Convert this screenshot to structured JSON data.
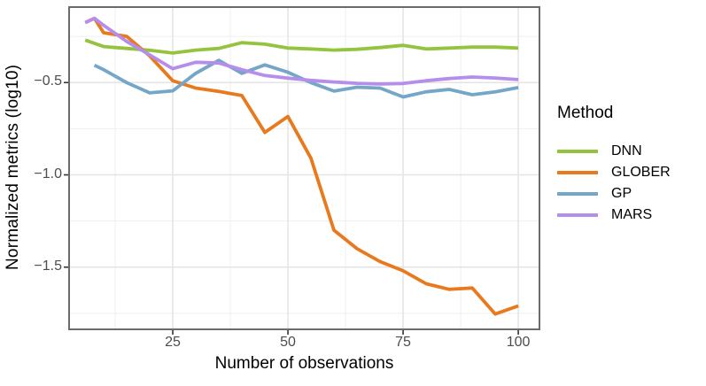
{
  "chart_data": {
    "type": "line",
    "title": "",
    "xlabel": "Number of observations",
    "ylabel": "Normalized metrics (log10)",
    "xlim": [
      2.5,
      104.6
    ],
    "ylim": [
      -1.837,
      -0.091
    ],
    "x_ticks": [
      25,
      50,
      75,
      100
    ],
    "x_tick_labels": [
      "25",
      "50",
      "75",
      "100"
    ],
    "x_minor_ticks": [
      12.5,
      37.5,
      62.5,
      87.5
    ],
    "y_ticks": [
      -0.5,
      -1.0,
      -1.5
    ],
    "y_tick_labels": [
      "−0.5",
      "−1.0",
      "−1.5"
    ],
    "y_minor_ticks": [
      -0.25,
      -0.75,
      -1.25,
      -1.75
    ],
    "grid": true,
    "legend_title": "Method",
    "legend_position": "right",
    "series": [
      {
        "name": "DNN",
        "color": "#94C33D",
        "points": [
          [
            6,
            -0.27
          ],
          [
            10,
            -0.305
          ],
          [
            15,
            -0.315
          ],
          [
            20,
            -0.325
          ],
          [
            25,
            -0.34
          ],
          [
            30,
            -0.324
          ],
          [
            35,
            -0.315
          ],
          [
            40,
            -0.284
          ],
          [
            45,
            -0.292
          ],
          [
            50,
            -0.313
          ],
          [
            55,
            -0.318
          ],
          [
            60,
            -0.324
          ],
          [
            65,
            -0.32
          ],
          [
            70,
            -0.31
          ],
          [
            75,
            -0.298
          ],
          [
            80,
            -0.318
          ],
          [
            85,
            -0.313
          ],
          [
            90,
            -0.308
          ],
          [
            95,
            -0.308
          ],
          [
            100,
            -0.313
          ]
        ]
      },
      {
        "name": "GLOBER",
        "color": "#E8791D",
        "points": [
          [
            6,
            -0.175
          ],
          [
            8,
            -0.152
          ],
          [
            10,
            -0.23
          ],
          [
            15,
            -0.25
          ],
          [
            20,
            -0.356
          ],
          [
            25,
            -0.49
          ],
          [
            30,
            -0.53
          ],
          [
            35,
            -0.548
          ],
          [
            40,
            -0.57
          ],
          [
            45,
            -0.77
          ],
          [
            50,
            -0.684
          ],
          [
            55,
            -0.91
          ],
          [
            60,
            -1.3
          ],
          [
            65,
            -1.4
          ],
          [
            70,
            -1.47
          ],
          [
            75,
            -1.52
          ],
          [
            80,
            -1.59
          ],
          [
            85,
            -1.62
          ],
          [
            90,
            -1.613
          ],
          [
            95,
            -1.754
          ],
          [
            100,
            -1.71
          ]
        ]
      },
      {
        "name": "GP",
        "color": "#74A6C8",
        "points": [
          [
            8,
            -0.406
          ],
          [
            10,
            -0.43
          ],
          [
            15,
            -0.5
          ],
          [
            20,
            -0.556
          ],
          [
            25,
            -0.545
          ],
          [
            30,
            -0.45
          ],
          [
            35,
            -0.38
          ],
          [
            40,
            -0.45
          ],
          [
            45,
            -0.404
          ],
          [
            50,
            -0.444
          ],
          [
            55,
            -0.5
          ],
          [
            60,
            -0.546
          ],
          [
            65,
            -0.525
          ],
          [
            70,
            -0.53
          ],
          [
            75,
            -0.578
          ],
          [
            80,
            -0.55
          ],
          [
            85,
            -0.537
          ],
          [
            90,
            -0.566
          ],
          [
            95,
            -0.55
          ],
          [
            100,
            -0.527
          ]
        ]
      },
      {
        "name": "MARS",
        "color": "#B58DEA",
        "points": [
          [
            6,
            -0.175
          ],
          [
            8,
            -0.152
          ],
          [
            10,
            -0.19
          ],
          [
            15,
            -0.277
          ],
          [
            20,
            -0.35
          ],
          [
            25,
            -0.425
          ],
          [
            30,
            -0.39
          ],
          [
            35,
            -0.394
          ],
          [
            40,
            -0.43
          ],
          [
            45,
            -0.462
          ],
          [
            50,
            -0.476
          ],
          [
            55,
            -0.488
          ],
          [
            60,
            -0.497
          ],
          [
            65,
            -0.504
          ],
          [
            70,
            -0.508
          ],
          [
            75,
            -0.505
          ],
          [
            80,
            -0.49
          ],
          [
            85,
            -0.478
          ],
          [
            90,
            -0.47
          ],
          [
            95,
            -0.475
          ],
          [
            100,
            -0.484
          ]
        ]
      }
    ],
    "colors": {
      "grid_major": "#E4E4E4",
      "grid_minor": "#EFEFEF",
      "panel_border": "#6B6B6B",
      "tick": "#333333",
      "tick_label": "#4D4D4D",
      "axis_title": "#000000",
      "background": "#FFFFFF"
    }
  }
}
